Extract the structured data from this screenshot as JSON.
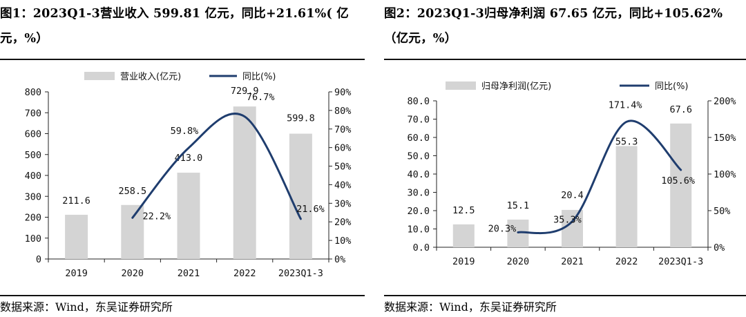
{
  "source_text": "数据来源：Wind，东吴证券研究所",
  "chart_data": [
    {
      "type": "bar",
      "title": "图1：2023Q1-3营业收入 599.81 亿元，同比+21.61%( 亿元，%）",
      "categories": [
        "2019",
        "2020",
        "2021",
        "2022",
        "2023Q1-3"
      ],
      "series": [
        {
          "name": "营业收入(亿元)",
          "kind": "bar",
          "axis": "left",
          "values": [
            211.6,
            258.5,
            413.0,
            729.9,
            599.8
          ],
          "labels": [
            "211.6",
            "258.5",
            "413.0",
            "729.9",
            "599.8"
          ],
          "color": "#d4d4d4"
        },
        {
          "name": "同比(%)",
          "kind": "line",
          "axis": "right",
          "values": [
            null,
            22.2,
            59.8,
            76.7,
            21.6
          ],
          "labels": [
            "",
            "22.2%",
            "59.8%",
            "76.7%",
            "21.6%"
          ],
          "color": "#1f3d6e"
        }
      ],
      "y_left": {
        "ylim": [
          0,
          800
        ],
        "ticks": [
          "0",
          "100",
          "200",
          "300",
          "400",
          "500",
          "600",
          "700",
          "800"
        ]
      },
      "y_right": {
        "ylim": [
          0,
          90
        ],
        "ticks": [
          "0%",
          "10%",
          "20%",
          "30%",
          "40%",
          "50%",
          "60%",
          "70%",
          "80%",
          "90%"
        ]
      },
      "legend": {
        "position": "top",
        "bar_label": "营业收入(亿元)",
        "line_label": "同比(%)"
      }
    },
    {
      "type": "bar",
      "title": "图2：2023Q1-3归母净利润 67.65 亿元，同比+105.62%（亿元，%）",
      "categories": [
        "2019",
        "2020",
        "2021",
        "2022",
        "2023Q1-3"
      ],
      "series": [
        {
          "name": "归母净利润(亿元)",
          "kind": "bar",
          "axis": "left",
          "values": [
            12.5,
            15.1,
            20.4,
            55.3,
            67.6
          ],
          "labels": [
            "12.5",
            "15.1",
            "20.4",
            "55.3",
            "67.6"
          ],
          "color": "#d4d4d4"
        },
        {
          "name": "同比(%)",
          "kind": "line",
          "axis": "right",
          "values": [
            null,
            20.3,
            35.3,
            171.4,
            105.6
          ],
          "labels": [
            "",
            "20.3%",
            "35.3%",
            "171.4%",
            "105.6%"
          ],
          "color": "#1f3d6e"
        }
      ],
      "y_left": {
        "ylim": [
          0,
          80
        ],
        "ticks": [
          "0.0",
          "10.0",
          "20.0",
          "30.0",
          "40.0",
          "50.0",
          "60.0",
          "70.0",
          "80.0"
        ]
      },
      "y_right": {
        "ylim": [
          0,
          200
        ],
        "ticks": [
          "0%",
          "50%",
          "100%",
          "150%",
          "200%"
        ]
      },
      "legend": {
        "position": "top",
        "bar_label": "归母净利润(亿元)",
        "line_label": "同比(%)"
      }
    }
  ]
}
